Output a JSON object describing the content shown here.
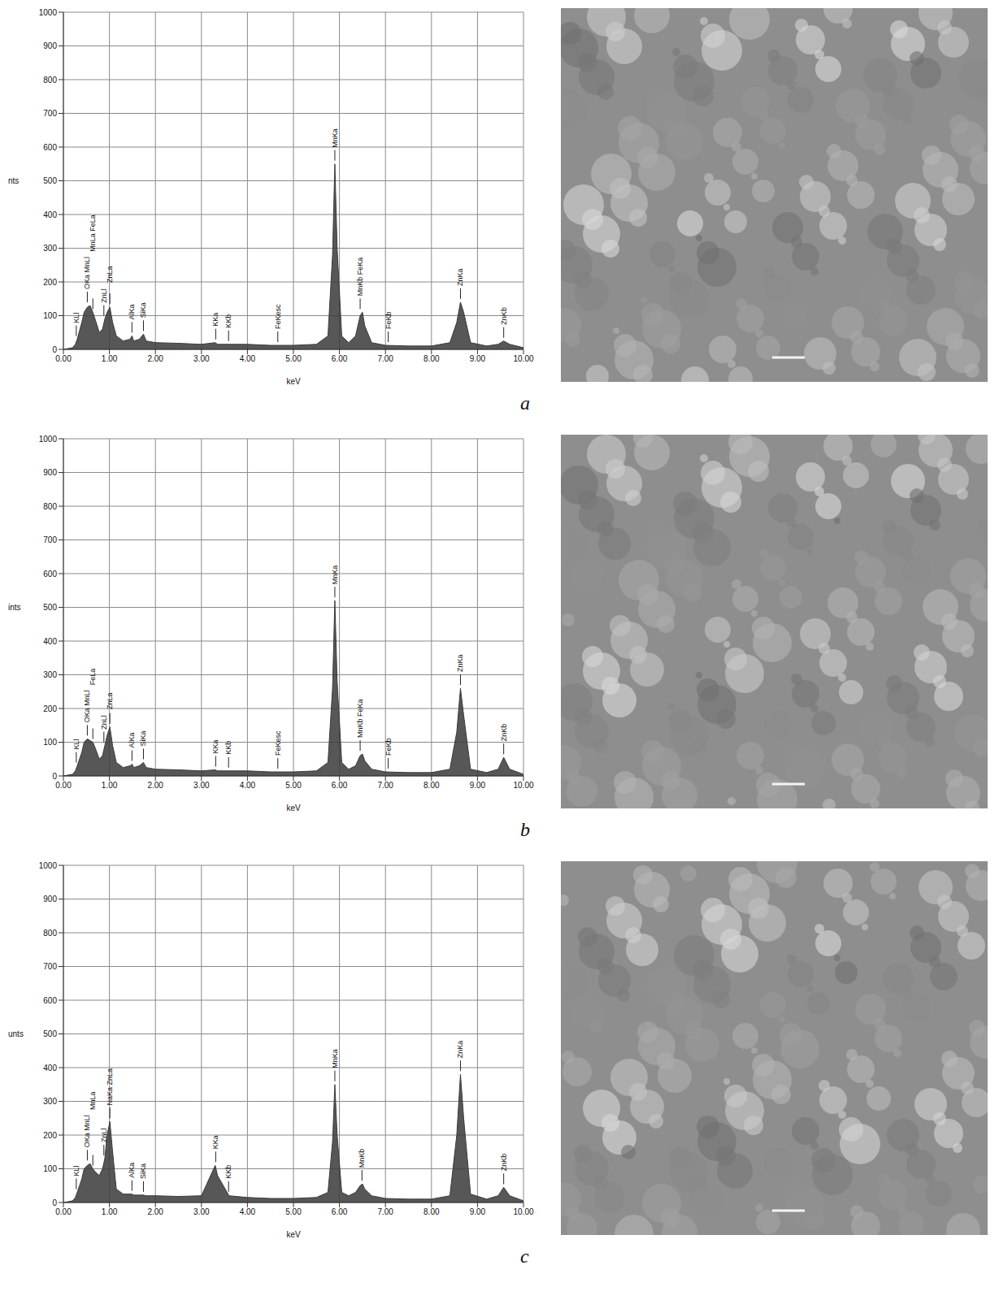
{
  "chart_data": [
    {
      "type": "area",
      "panel": "a",
      "x_label": "keV",
      "y_label": "nts",
      "color": "#3a3a3a",
      "grid": true,
      "xlim": [
        0,
        10
      ],
      "ylim": [
        0,
        1000
      ],
      "xticks": [
        {
          "value": 0,
          "label": "0.00"
        },
        {
          "value": 1,
          "label": "1.00"
        },
        {
          "value": 2,
          "label": "2.00"
        },
        {
          "value": 3,
          "label": "3.00"
        },
        {
          "value": 4,
          "label": "4.00"
        },
        {
          "value": 5,
          "label": "5.00"
        },
        {
          "value": 6,
          "label": "6.00"
        },
        {
          "value": 7,
          "label": "7.00"
        },
        {
          "value": 8,
          "label": "8.00"
        },
        {
          "value": 9,
          "label": "9.00"
        },
        {
          "value": 10,
          "label": "10.00"
        }
      ],
      "yticks": [
        0,
        100,
        200,
        300,
        400,
        500,
        600,
        700,
        800,
        900,
        1000
      ],
      "x": [
        0,
        0.2,
        0.26,
        0.3,
        0.4,
        0.45,
        0.52,
        0.58,
        0.64,
        0.7,
        0.78,
        0.85,
        0.9,
        0.95,
        1.01,
        1.07,
        1.15,
        1.3,
        1.45,
        1.49,
        1.53,
        1.65,
        1.74,
        1.8,
        2.0,
        2.5,
        3.0,
        3.3,
        3.35,
        3.6,
        4.0,
        4.5,
        5.0,
        5.5,
        5.75,
        5.85,
        5.9,
        5.95,
        6.05,
        6.2,
        6.35,
        6.45,
        6.5,
        6.55,
        6.7,
        7.0,
        7.5,
        8.0,
        8.4,
        8.55,
        8.63,
        8.7,
        8.85,
        9.2,
        9.45,
        9.57,
        9.7,
        10
      ],
      "values": [
        0,
        5,
        15,
        30,
        80,
        110,
        125,
        130,
        110,
        85,
        50,
        60,
        90,
        110,
        125,
        80,
        40,
        25,
        30,
        40,
        25,
        30,
        45,
        25,
        20,
        18,
        15,
        20,
        15,
        15,
        15,
        12,
        12,
        15,
        40,
        280,
        550,
        300,
        40,
        20,
        40,
        100,
        110,
        70,
        20,
        12,
        10,
        10,
        20,
        80,
        140,
        110,
        20,
        10,
        15,
        25,
        15,
        5
      ],
      "annotations": [
        {
          "x": 0.28,
          "label": "KLl"
        },
        {
          "x": 0.52,
          "label": "OKa MnLl"
        },
        {
          "x": 0.64,
          "label": "MnLa FeLa"
        },
        {
          "x": 0.88,
          "label": "ZnLl"
        },
        {
          "x": 1.01,
          "label": "ZnLa"
        },
        {
          "x": 1.49,
          "label": "AlKa"
        },
        {
          "x": 1.74,
          "label": "SiKa"
        },
        {
          "x": 3.31,
          "label": "KKa"
        },
        {
          "x": 3.59,
          "label": "KKb"
        },
        {
          "x": 4.66,
          "label": "FeKesc"
        },
        {
          "x": 5.9,
          "label": "MnKa"
        },
        {
          "x": 6.45,
          "label": "MnKb FeKa"
        },
        {
          "x": 7.06,
          "label": "FeKb"
        },
        {
          "x": 8.63,
          "label": "ZnKa"
        },
        {
          "x": 9.57,
          "label": "ZnKb"
        }
      ]
    },
    {
      "type": "area",
      "panel": "b",
      "x_label": "keV",
      "y_label": "ints",
      "color": "#3a3a3a",
      "grid": true,
      "xlim": [
        0,
        10
      ],
      "ylim": [
        0,
        1000
      ],
      "xticks": [
        {
          "value": 0,
          "label": "0.00"
        },
        {
          "value": 1,
          "label": "1.00"
        },
        {
          "value": 2,
          "label": "2.00"
        },
        {
          "value": 3,
          "label": "3.00"
        },
        {
          "value": 4,
          "label": "4.00"
        },
        {
          "value": 5,
          "label": "5.00"
        },
        {
          "value": 6,
          "label": "6.00"
        },
        {
          "value": 7,
          "label": "7.00"
        },
        {
          "value": 8,
          "label": "8.00"
        },
        {
          "value": 9,
          "label": "9.00"
        },
        {
          "value": 10,
          "label": "10.00"
        }
      ],
      "yticks": [
        0,
        100,
        200,
        300,
        400,
        500,
        600,
        700,
        800,
        900,
        1000
      ],
      "x": [
        0,
        0.2,
        0.26,
        0.3,
        0.4,
        0.45,
        0.52,
        0.58,
        0.64,
        0.7,
        0.78,
        0.85,
        0.9,
        0.95,
        1.01,
        1.07,
        1.15,
        1.3,
        1.45,
        1.49,
        1.53,
        1.65,
        1.74,
        1.8,
        2.0,
        2.5,
        3.0,
        3.3,
        3.35,
        3.6,
        4.0,
        4.5,
        5.0,
        5.5,
        5.75,
        5.85,
        5.9,
        5.95,
        6.05,
        6.2,
        6.35,
        6.45,
        6.5,
        6.55,
        6.7,
        7.0,
        7.5,
        8.0,
        8.4,
        8.55,
        8.63,
        8.7,
        8.85,
        9.2,
        9.45,
        9.57,
        9.7,
        10
      ],
      "values": [
        0,
        5,
        15,
        30,
        70,
        100,
        110,
        105,
        100,
        80,
        50,
        60,
        90,
        120,
        145,
        90,
        40,
        25,
        30,
        35,
        25,
        30,
        40,
        25,
        20,
        18,
        15,
        18,
        15,
        15,
        15,
        12,
        12,
        15,
        40,
        260,
        520,
        280,
        40,
        20,
        30,
        60,
        65,
        45,
        20,
        12,
        10,
        10,
        20,
        130,
        260,
        180,
        20,
        10,
        20,
        55,
        20,
        5
      ],
      "annotations": [
        {
          "x": 0.28,
          "label": "KLl"
        },
        {
          "x": 0.52,
          "label": "OKa MnLl"
        },
        {
          "x": 0.64,
          "label": "FeLa"
        },
        {
          "x": 0.88,
          "label": "ZnLl"
        },
        {
          "x": 1.01,
          "label": "ZnLa"
        },
        {
          "x": 1.49,
          "label": "AlKa"
        },
        {
          "x": 1.74,
          "label": "SiKa"
        },
        {
          "x": 3.31,
          "label": "KKa"
        },
        {
          "x": 3.59,
          "label": "KKb"
        },
        {
          "x": 4.66,
          "label": "FeKesc"
        },
        {
          "x": 5.9,
          "label": "MnKa"
        },
        {
          "x": 6.45,
          "label": "MnKb FeKa"
        },
        {
          "x": 7.06,
          "label": "FeKb"
        },
        {
          "x": 8.63,
          "label": "ZnKa"
        },
        {
          "x": 9.57,
          "label": "ZnKb"
        }
      ]
    },
    {
      "type": "area",
      "panel": "c",
      "x_label": "keV",
      "y_label": "unts",
      "color": "#3a3a3a",
      "grid": true,
      "xlim": [
        0,
        10
      ],
      "ylim": [
        0,
        1000
      ],
      "xticks": [
        {
          "value": 0,
          "label": "0.00"
        },
        {
          "value": 1,
          "label": "1.00"
        },
        {
          "value": 2,
          "label": "2.00"
        },
        {
          "value": 3,
          "label": "3.00"
        },
        {
          "value": 4,
          "label": "4.00"
        },
        {
          "value": 5,
          "label": "5.00"
        },
        {
          "value": 6,
          "label": "6.00"
        },
        {
          "value": 7,
          "label": "7.00"
        },
        {
          "value": 8,
          "label": "8.00"
        },
        {
          "value": 9,
          "label": "9.00"
        },
        {
          "value": 10,
          "label": "10.00"
        }
      ],
      "yticks": [
        0,
        100,
        200,
        300,
        400,
        500,
        600,
        700,
        800,
        900,
        1000
      ],
      "x": [
        0,
        0.2,
        0.26,
        0.3,
        0.4,
        0.45,
        0.52,
        0.58,
        0.64,
        0.7,
        0.78,
        0.85,
        0.9,
        0.95,
        1.01,
        1.07,
        1.15,
        1.3,
        1.45,
        1.49,
        1.53,
        1.65,
        1.74,
        1.8,
        2.0,
        2.5,
        3.0,
        3.3,
        3.35,
        3.6,
        4.0,
        4.5,
        5.0,
        5.5,
        5.75,
        5.85,
        5.9,
        5.95,
        6.05,
        6.2,
        6.35,
        6.45,
        6.5,
        6.55,
        6.7,
        7.0,
        7.5,
        8.0,
        8.4,
        8.55,
        8.63,
        8.7,
        8.85,
        9.2,
        9.45,
        9.57,
        9.7,
        10
      ],
      "values": [
        0,
        5,
        15,
        30,
        70,
        100,
        110,
        115,
        100,
        90,
        80,
        100,
        130,
        200,
        240,
        150,
        40,
        25,
        25,
        25,
        22,
        22,
        22,
        20,
        20,
        18,
        20,
        110,
        80,
        20,
        15,
        12,
        12,
        15,
        30,
        180,
        350,
        200,
        30,
        20,
        30,
        50,
        55,
        40,
        20,
        12,
        10,
        10,
        20,
        200,
        380,
        250,
        25,
        10,
        20,
        45,
        20,
        5
      ],
      "annotations": [
        {
          "x": 0.28,
          "label": "KLl"
        },
        {
          "x": 0.52,
          "label": "OKa MnLl"
        },
        {
          "x": 0.64,
          "label": "MnLa"
        },
        {
          "x": 0.88,
          "label": "ZnLl"
        },
        {
          "x": 1.01,
          "label": "NaKa ZnLa"
        },
        {
          "x": 1.49,
          "label": "AlKa"
        },
        {
          "x": 1.74,
          "label": "SiKa"
        },
        {
          "x": 3.31,
          "label": "KKa"
        },
        {
          "x": 3.59,
          "label": "KKb"
        },
        {
          "x": 5.9,
          "label": "MnKa"
        },
        {
          "x": 6.49,
          "label": "MnKb"
        },
        {
          "x": 8.63,
          "label": "ZnKa"
        },
        {
          "x": 9.57,
          "label": "ZnKb"
        }
      ]
    }
  ]
}
